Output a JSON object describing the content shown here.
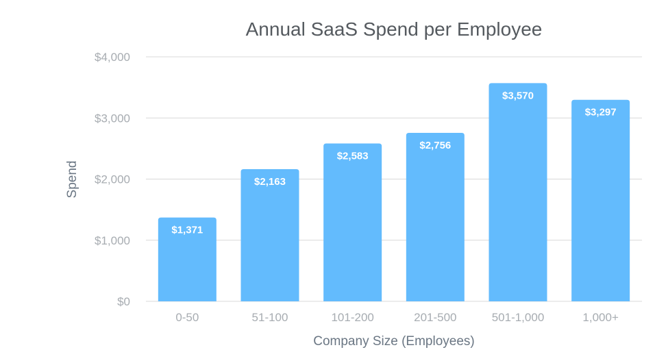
{
  "chart_data": {
    "type": "bar",
    "title": "Annual SaaS Spend per Employee",
    "xlabel": "Company Size (Employees)",
    "ylabel": "Spend",
    "categories": [
      "0-50",
      "51-100",
      "101-200",
      "201-500",
      "501-1,000",
      "1,000+"
    ],
    "values": [
      1371,
      2163,
      2583,
      2756,
      3570,
      3297
    ],
    "data_labels": [
      "$1,371",
      "$2,163",
      "$2,583",
      "$2,756",
      "$3,570",
      "$3,297"
    ],
    "ylim": [
      0,
      4000
    ],
    "yticks": [
      0,
      1000,
      2000,
      3000,
      4000
    ],
    "ytick_labels": [
      "$0",
      "$1,000",
      "$2,000",
      "$3,000",
      "$4,000"
    ],
    "grid": true,
    "legend": "none",
    "bar_color": "#63bbfd",
    "grid_color": "#d9d9d9"
  }
}
